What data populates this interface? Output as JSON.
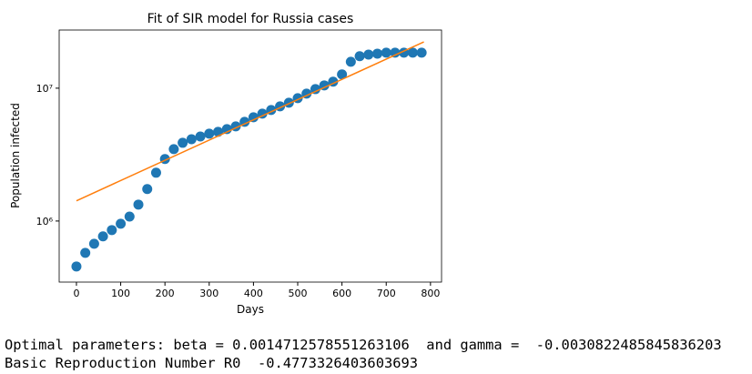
{
  "chart_data": {
    "type": "scatter",
    "title": "Fit of SIR model for Russia cases",
    "x_label": "Days",
    "y_label": "Population infected",
    "xlim": [
      -39,
      825
    ],
    "xticks": [
      0,
      100,
      200,
      300,
      400,
      500,
      600,
      700,
      800
    ],
    "ylim": [
      347000,
      27400000
    ],
    "yscale": "log",
    "yticks": [
      {
        "value": 1000000,
        "label": "10⁶"
      },
      {
        "value": 10000000,
        "label": "10⁷"
      }
    ],
    "series": [
      {
        "type": "scatter",
        "color": "#1f77b4",
        "x": [
          0,
          20,
          40,
          60,
          80,
          100,
          120,
          140,
          160,
          180,
          200,
          220,
          240,
          260,
          280,
          300,
          320,
          340,
          360,
          380,
          400,
          420,
          440,
          460,
          480,
          500,
          520,
          540,
          560,
          580,
          600,
          620,
          640,
          660,
          680,
          700,
          720,
          740,
          760,
          780
        ],
        "values": [
          455000,
          576000,
          674000,
          766000,
          855000,
          954000,
          1080000,
          1330000,
          1740000,
          2310000,
          2930000,
          3480000,
          3880000,
          4130000,
          4330000,
          4550000,
          4690000,
          4920000,
          5160000,
          5580000,
          6040000,
          6430000,
          6850000,
          7300000,
          7770000,
          8410000,
          9100000,
          9840000,
          10500000,
          11200000,
          12700000,
          15800000,
          17400000,
          17900000,
          18200000,
          18500000,
          18500000,
          18500000,
          18500000,
          18500000
        ]
      },
      {
        "type": "line",
        "color": "#ff7f0e",
        "x": [
          0,
          785
        ],
        "values": [
          1420000,
          22300000
        ]
      }
    ]
  },
  "output": {
    "lines": [
      "Optimal parameters: beta = 0.0014712578551263106  and gamma =  -0.0030822485845836203",
      "Basic Reproduction Number R0  -0.4773326403603693"
    ]
  }
}
